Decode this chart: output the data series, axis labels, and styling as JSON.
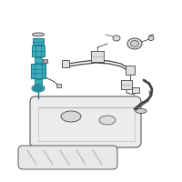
{
  "bg_color": "#ffffff",
  "highlight_color": "#3aacbc",
  "line_color": "#444444",
  "light_line": "#999999",
  "tank_fill": "#f0f0f0",
  "tank_stroke": "#555555",
  "figsize": [
    2.0,
    2.0
  ],
  "dpi": 100
}
